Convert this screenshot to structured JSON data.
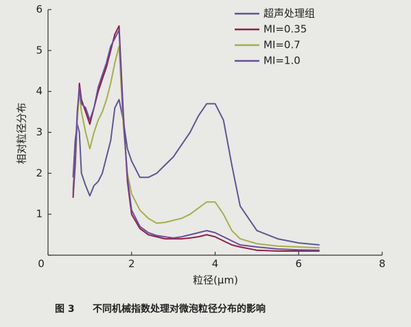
{
  "chart_data": {
    "type": "line",
    "figure_label": "图 3",
    "title": "不同机械指数处理对微泡粒径分布的影响",
    "xlabel": "粒径(μm)",
    "ylabel": "相对粒径分布",
    "xlim": [
      0,
      8
    ],
    "xticks": [
      0,
      2,
      4,
      6,
      8
    ],
    "ylim": [
      0,
      6
    ],
    "yticks": [
      0,
      1,
      2,
      3,
      4,
      5,
      6
    ],
    "legend": "upper-right",
    "x": [
      0.6,
      0.65,
      0.7,
      0.75,
      0.8,
      0.9,
      1.0,
      1.1,
      1.2,
      1.3,
      1.4,
      1.5,
      1.6,
      1.7,
      1.8,
      1.9,
      2.0,
      2.2,
      2.4,
      2.6,
      2.8,
      3.0,
      3.2,
      3.4,
      3.6,
      3.8,
      4.0,
      4.2,
      4.4,
      4.6,
      5.0,
      5.5,
      6.0,
      6.5
    ],
    "series": [
      {
        "name": "超声处理组",
        "color": "#5a5890",
        "values": [
          1.9,
          2.8,
          3.2,
          3.0,
          2.0,
          1.7,
          1.45,
          1.7,
          1.8,
          2.0,
          2.4,
          2.8,
          3.6,
          3.8,
          3.3,
          2.6,
          2.3,
          1.9,
          1.9,
          2.0,
          2.2,
          2.4,
          2.7,
          3.0,
          3.4,
          3.7,
          3.7,
          3.3,
          2.2,
          1.2,
          0.6,
          0.4,
          0.3,
          0.25
        ]
      },
      {
        "name": "MI=0.35",
        "color": "#8e2145",
        "values": [
          1.4,
          2.2,
          3.3,
          4.2,
          3.8,
          3.5,
          3.2,
          3.6,
          4.0,
          4.3,
          4.6,
          5.0,
          5.4,
          5.6,
          3.5,
          1.8,
          1.0,
          0.65,
          0.5,
          0.45,
          0.4,
          0.4,
          0.4,
          0.42,
          0.45,
          0.5,
          0.45,
          0.35,
          0.25,
          0.2,
          0.12,
          0.1,
          0.1,
          0.1
        ]
      },
      {
        "name": "MI=0.7",
        "color": "#a5ae4c",
        "values": [
          1.6,
          2.4,
          3.3,
          4.0,
          3.5,
          3.0,
          2.6,
          3.0,
          3.3,
          3.5,
          3.8,
          4.2,
          4.7,
          5.1,
          3.2,
          2.0,
          1.5,
          1.1,
          0.9,
          0.78,
          0.8,
          0.85,
          0.9,
          1.0,
          1.15,
          1.3,
          1.3,
          1.0,
          0.6,
          0.4,
          0.28,
          0.22,
          0.2,
          0.18
        ]
      },
      {
        "name": "MI=1.0",
        "color": "#6a4c9c",
        "values": [
          1.5,
          2.4,
          3.5,
          4.1,
          3.7,
          3.6,
          3.3,
          3.6,
          4.1,
          4.4,
          4.7,
          5.1,
          5.3,
          5.5,
          3.4,
          1.9,
          1.1,
          0.7,
          0.55,
          0.48,
          0.45,
          0.42,
          0.45,
          0.5,
          0.55,
          0.6,
          0.55,
          0.45,
          0.35,
          0.25,
          0.2,
          0.15,
          0.13,
          0.12
        ]
      }
    ]
  }
}
